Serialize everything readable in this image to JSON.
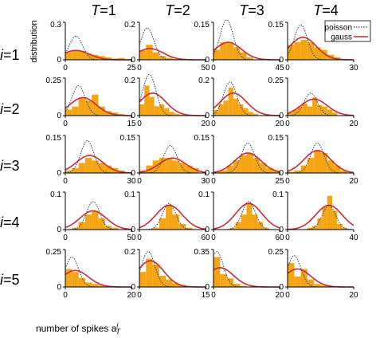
{
  "figure": {
    "col_prefix": "T",
    "col_values": [
      "=1",
      "=2",
      "=3",
      "=4"
    ],
    "row_prefix": "i",
    "row_values": [
      "=1",
      "=2",
      "=3",
      "=4",
      "=5"
    ],
    "ylabel": "distribution",
    "xlabel": "number of spikes a",
    "xlabel_sup": "i",
    "xlabel_sub": "T"
  },
  "legend": {
    "poisson": "poisson",
    "gauss": "gauss"
  },
  "colors": {
    "bars": "#f5a514",
    "gauss": "#cc2a36",
    "poisson": "#2b3a67",
    "axis": "#000000"
  },
  "chart_data": [
    {
      "type": "bar",
      "row": 1,
      "col": 1,
      "xlim": [
        0,
        25
      ],
      "ylim": [
        0,
        0.3
      ],
      "xtick_labels": [
        "0",
        "25"
      ],
      "ytick_labels": [
        "0",
        "0.3"
      ],
      "bin_width": 2.5,
      "bars": [
        0.06,
        0.07,
        0.07,
        0.05,
        0.04,
        0.03,
        0.02,
        0.01,
        0.015,
        0.005
      ],
      "poisson_peak": [
        4,
        0.19
      ],
      "gauss_peak": [
        4,
        0.075
      ]
    },
    {
      "type": "bar",
      "row": 1,
      "col": 2,
      "xlim": [
        0,
        50
      ],
      "ylim": [
        0,
        0.2
      ],
      "xtick_labels": [
        "0",
        "50"
      ],
      "ytick_labels": [
        "0",
        "0.2"
      ],
      "bin_width": 5,
      "bars": [
        0.05,
        0.08,
        0.04,
        0.02,
        0.01,
        0.005
      ],
      "poisson_peak": [
        6,
        0.17
      ],
      "gauss_peak": [
        8,
        0.06
      ]
    },
    {
      "type": "bar",
      "row": 1,
      "col": 3,
      "xlim": [
        0,
        45
      ],
      "ylim": [
        0,
        0.15
      ],
      "xtick_labels": [
        "0",
        "45"
      ],
      "ytick_labels": [
        "0",
        "0.15"
      ],
      "bin_width": 4.5,
      "bars": [
        0.04,
        0.07,
        0.07,
        0.05,
        0.03,
        0.01
      ],
      "poisson_peak": [
        9,
        0.16
      ],
      "gauss_peak": [
        10,
        0.07
      ]
    },
    {
      "type": "bar",
      "row": 1,
      "col": 4,
      "xlim": [
        0,
        30
      ],
      "ylim": [
        0,
        0.15
      ],
      "xtick_labels": [
        "0",
        "30"
      ],
      "ytick_labels": [
        "0",
        "0.15"
      ],
      "bin_width": 3,
      "bars": [
        0.06,
        0.07,
        0.08,
        0.07,
        0.05,
        0.04,
        0.02,
        0.01
      ],
      "poisson_peak": [
        6,
        0.14
      ],
      "gauss_peak": [
        7,
        0.09
      ]
    },
    {
      "type": "bar",
      "row": 2,
      "col": 1,
      "xlim": [
        0,
        15
      ],
      "ylim": [
        0,
        0.25
      ],
      "xtick_labels": [
        "0",
        "15"
      ],
      "ytick_labels": [
        "0",
        "0.25"
      ],
      "bin_width": 1.5,
      "bars": [
        0.04,
        0.06,
        0.12,
        0.1,
        0.14,
        0.06,
        0.03,
        0.02,
        0.01
      ],
      "poisson_peak": [
        3,
        0.2
      ],
      "gauss_peak": [
        4,
        0.12
      ]
    },
    {
      "type": "bar",
      "row": 2,
      "col": 2,
      "xlim": [
        0,
        20
      ],
      "ylim": [
        0,
        0.2
      ],
      "xtick_labels": [
        "0",
        "20"
      ],
      "ytick_labels": [
        "0",
        "0.2"
      ],
      "bin_width": 1.5,
      "bars": [
        0.06,
        0.16,
        0.1,
        0.05,
        0.06,
        0.04,
        0.02,
        0.01,
        0.005
      ],
      "poisson_peak": [
        3,
        0.22
      ],
      "gauss_peak": [
        4,
        0.12
      ]
    },
    {
      "type": "bar",
      "row": 2,
      "col": 3,
      "xlim": [
        0,
        20
      ],
      "ylim": [
        0,
        0.2
      ],
      "xtick_labels": [
        "0",
        "20"
      ],
      "ytick_labels": [
        "0",
        "0.2"
      ],
      "bin_width": 1.5,
      "bars": [
        0.03,
        0.06,
        0.08,
        0.15,
        0.09,
        0.06,
        0.04,
        0.02,
        0.01
      ],
      "poisson_peak": [
        5,
        0.18
      ],
      "gauss_peak": [
        6,
        0.12
      ]
    },
    {
      "type": "bar",
      "row": 2,
      "col": 4,
      "xlim": [
        0,
        20
      ],
      "ylim": [
        0,
        0.25
      ],
      "xtick_labels": [
        "0",
        "20"
      ],
      "ytick_labels": [
        "0",
        "0.25"
      ],
      "bin_width": 1.5,
      "bars": [
        0.02,
        0.04,
        0.06,
        0.08,
        0.06,
        0.12,
        0.07,
        0.06,
        0.04,
        0.02
      ],
      "poisson_peak": [
        7,
        0.15
      ],
      "gauss_peak": [
        8,
        0.11
      ]
    },
    {
      "type": "bar",
      "row": 3,
      "col": 1,
      "xlim": [
        0,
        30
      ],
      "ylim": [
        0,
        0.15
      ],
      "xtick_labels": [
        "0",
        "30"
      ],
      "ytick_labels": [
        "0",
        "0.15"
      ],
      "bin_width": 3,
      "bars": [
        0.01,
        0.02,
        0.04,
        0.06,
        0.05,
        0.04,
        0.03,
        0.02,
        0.01
      ],
      "poisson_peak": [
        10,
        0.13
      ],
      "gauss_peak": [
        11,
        0.07
      ]
    },
    {
      "type": "bar",
      "row": 3,
      "col": 2,
      "xlim": [
        0,
        30
      ],
      "ylim": [
        0,
        0.15
      ],
      "xtick_labels": [
        "0",
        "30"
      ],
      "ytick_labels": [
        "0",
        "0.15"
      ],
      "bin_width": 3,
      "bars": [
        0.01,
        0.03,
        0.05,
        0.06,
        0.06,
        0.05,
        0.04,
        0.03,
        0.02
      ],
      "poisson_peak": [
        14,
        0.11
      ],
      "gauss_peak": [
        15,
        0.06
      ]
    },
    {
      "type": "bar",
      "row": 3,
      "col": 3,
      "xlim": [
        0,
        25
      ],
      "ylim": [
        0,
        0.15
      ],
      "xtick_labels": [
        "0",
        "25"
      ],
      "ytick_labels": [
        "0",
        "0.15"
      ],
      "bin_width": 2.5,
      "bars": [
        0.005,
        0.01,
        0.03,
        0.05,
        0.07,
        0.08,
        0.06,
        0.04,
        0.02,
        0.01
      ],
      "poisson_peak": [
        13,
        0.12
      ],
      "gauss_peak": [
        13,
        0.08
      ]
    },
    {
      "type": "bar",
      "row": 3,
      "col": 4,
      "xlim": [
        0,
        20
      ],
      "ylim": [
        0,
        0.15
      ],
      "xtick_labels": [
        "0",
        "20"
      ],
      "ytick_labels": [
        "0",
        "0.15"
      ],
      "bin_width": 2,
      "bars": [
        0.005,
        0.01,
        0.03,
        0.06,
        0.09,
        0.08,
        0.05,
        0.03,
        0.01
      ],
      "poisson_peak": [
        9,
        0.12
      ],
      "gauss_peak": [
        9,
        0.09
      ]
    },
    {
      "type": "bar",
      "row": 4,
      "col": 1,
      "xlim": [
        0,
        50
      ],
      "ylim": [
        0,
        0.1
      ],
      "xtick_labels": [
        "0",
        "50"
      ],
      "ytick_labels": [
        "0",
        "0.1"
      ],
      "bin_width": 5,
      "bars": [
        0.0,
        0.005,
        0.02,
        0.04,
        0.05,
        0.03,
        0.01,
        0.005
      ],
      "poisson_peak": [
        21,
        0.075
      ],
      "gauss_peak": [
        21,
        0.05
      ]
    },
    {
      "type": "bar",
      "row": 4,
      "col": 2,
      "xlim": [
        0,
        60
      ],
      "ylim": [
        0,
        0.1
      ],
      "xtick_labels": [
        "0",
        "60"
      ],
      "ytick_labels": [
        "0",
        "0.1"
      ],
      "bin_width": 6,
      "bars": [
        0.0,
        0.0,
        0.005,
        0.03,
        0.065,
        0.04,
        0.015,
        0.005
      ],
      "poisson_peak": [
        27,
        0.07
      ],
      "gauss_peak": [
        27,
        0.065
      ]
    },
    {
      "type": "bar",
      "row": 4,
      "col": 3,
      "xlim": [
        0,
        60
      ],
      "ylim": [
        0,
        0.1
      ],
      "xtick_labels": [
        "0",
        "60"
      ],
      "ytick_labels": [
        "0",
        "0.1"
      ],
      "bin_width": 5,
      "bars": [
        0.0,
        0.0,
        0.0,
        0.005,
        0.02,
        0.04,
        0.07,
        0.04,
        0.02,
        0.005
      ],
      "poisson_peak": [
        32,
        0.075
      ],
      "gauss_peak": [
        32,
        0.07
      ]
    },
    {
      "type": "bar",
      "row": 4,
      "col": 4,
      "xlim": [
        0,
        40
      ],
      "ylim": [
        0,
        0.1
      ],
      "xtick_labels": [
        "0",
        "40"
      ],
      "ytick_labels": [
        "0",
        "0.1"
      ],
      "bin_width": 3,
      "bars": [
        0.0,
        0.0,
        0.0,
        0.0,
        0.005,
        0.01,
        0.03,
        0.06,
        0.09,
        0.05,
        0.015,
        0.005
      ],
      "poisson_peak": [
        25,
        0.065
      ],
      "gauss_peak": [
        25,
        0.065
      ]
    },
    {
      "type": "bar",
      "row": 5,
      "col": 1,
      "xlim": [
        0,
        20
      ],
      "ylim": [
        0,
        0.25
      ],
      "xtick_labels": [
        "0",
        "20"
      ],
      "ytick_labels": [
        "0",
        "0.25"
      ],
      "bin_width": 2,
      "bars": [
        0.12,
        0.1,
        0.06,
        0.03,
        0.02,
        0.01
      ],
      "poisson_peak": [
        2,
        0.2
      ],
      "gauss_peak": [
        3,
        0.11
      ]
    },
    {
      "type": "bar",
      "row": 5,
      "col": 2,
      "xlim": [
        0,
        15
      ],
      "ylim": [
        0,
        0.2
      ],
      "xtick_labels": [
        "0",
        "15"
      ],
      "ytick_labels": [
        "0",
        "0.2"
      ],
      "bin_width": 1.5,
      "bars": [
        0.08,
        0.15,
        0.12,
        0.06,
        0.04,
        0.02,
        0.01
      ],
      "poisson_peak": [
        2,
        0.19
      ],
      "gauss_peak": [
        2.5,
        0.14
      ]
    },
    {
      "type": "bar",
      "row": 5,
      "col": 3,
      "xlim": [
        0,
        20
      ],
      "ylim": [
        0,
        0.35
      ],
      "xtick_labels": [
        "0",
        "20"
      ],
      "ytick_labels": [
        "0",
        "0.35"
      ],
      "bin_width": 2,
      "bars": [
        0.28,
        0.12,
        0.08,
        0.03,
        0.01
      ],
      "poisson_peak": [
        1,
        0.33
      ],
      "gauss_peak": [
        2,
        0.18
      ]
    },
    {
      "type": "bar",
      "row": 5,
      "col": 4,
      "xlim": [
        0,
        20
      ],
      "ylim": [
        0,
        0.25
      ],
      "xtick_labels": [
        "0",
        "20"
      ],
      "ytick_labels": [
        "0",
        "0.25"
      ],
      "bin_width": 2,
      "bars": [
        0.16,
        0.07,
        0.12,
        0.05,
        0.02,
        0.01
      ],
      "poisson_peak": [
        2,
        0.21
      ],
      "gauss_peak": [
        3,
        0.12
      ]
    }
  ]
}
